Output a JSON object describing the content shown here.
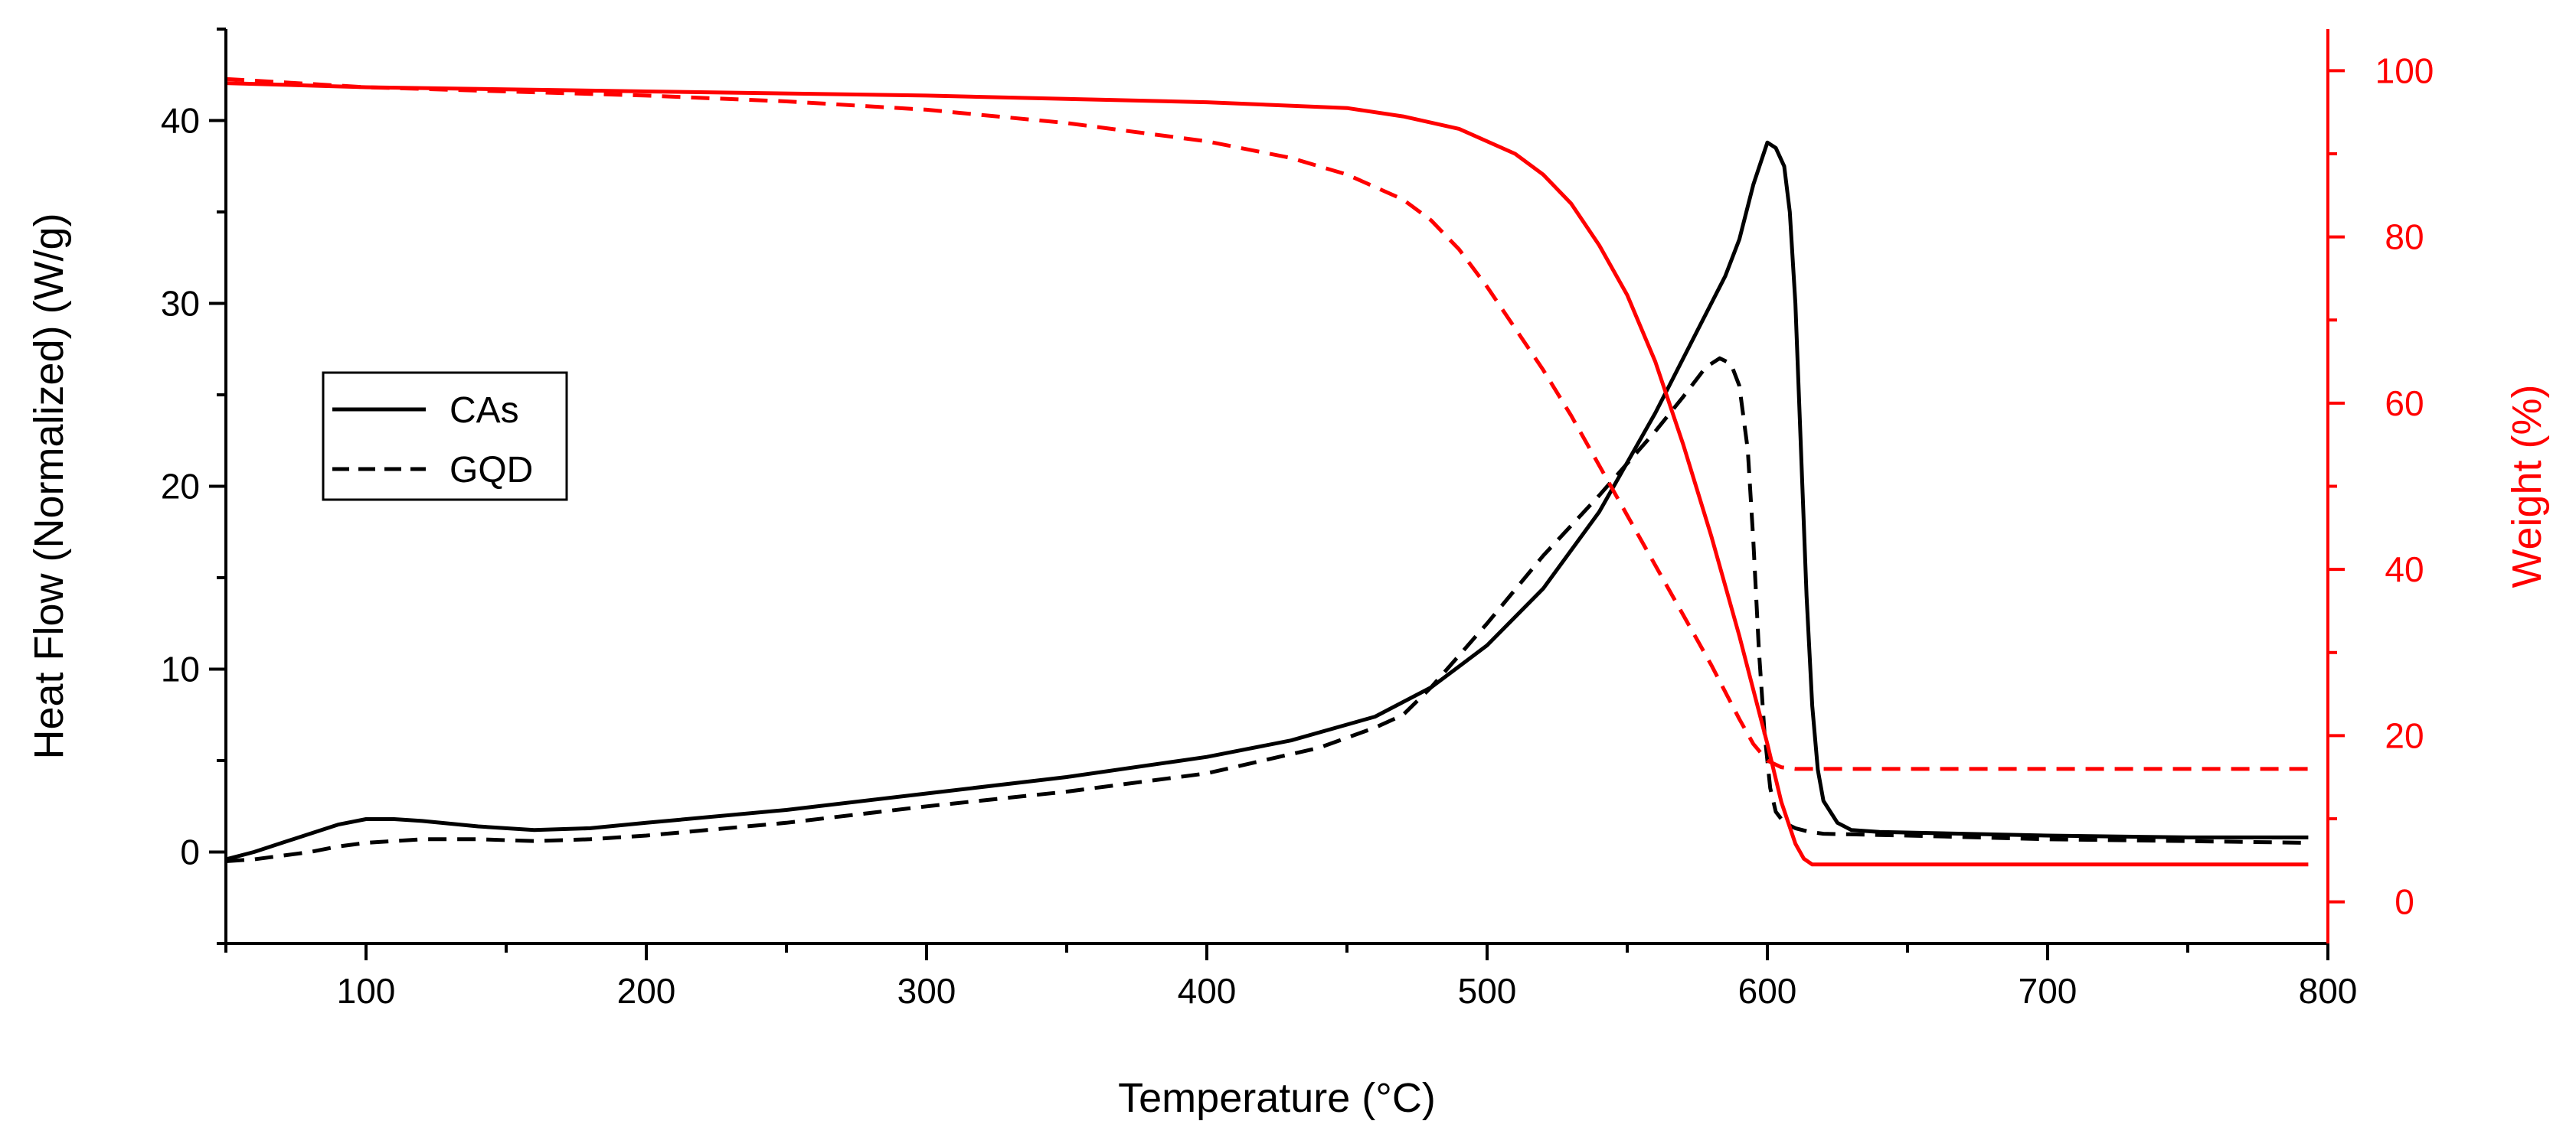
{
  "chart_data": {
    "type": "line",
    "title": "",
    "xlabel": "Temperature (°C)",
    "ylabel_left": "Heat Flow (Normalized) (W/g)",
    "ylabel_right": "Weight (%)",
    "xlim": [
      50,
      800
    ],
    "ylim_left": [
      -5,
      45
    ],
    "ylim_right": [
      -5,
      105
    ],
    "x_ticks": [
      100,
      200,
      300,
      400,
      500,
      600,
      700,
      800
    ],
    "y_left_ticks": [
      0,
      10,
      20,
      30,
      40
    ],
    "y_right_ticks": [
      0,
      20,
      40,
      60,
      80,
      100
    ],
    "grid": false,
    "legend_position": "left",
    "colors": {
      "heat_flow": "#000000",
      "weight": "#ff0000",
      "axis_right": "#ff0000"
    },
    "legend": [
      {
        "name": "CAs",
        "style": "solid"
      },
      {
        "name": "GQD",
        "style": "dashed"
      }
    ],
    "series": [
      {
        "name": "CAs heat flow",
        "axis": "left",
        "color": "#000000",
        "dash": "solid",
        "x": [
          50,
          60,
          70,
          80,
          90,
          100,
          110,
          120,
          140,
          160,
          180,
          200,
          250,
          300,
          350,
          400,
          430,
          460,
          480,
          500,
          520,
          540,
          560,
          575,
          585,
          590,
          595,
          600,
          603,
          606,
          608,
          610,
          612,
          614,
          616,
          618,
          620,
          625,
          630,
          640,
          700,
          750,
          793
        ],
        "y": [
          -0.4,
          0.0,
          0.5,
          1.0,
          1.5,
          1.8,
          1.8,
          1.7,
          1.4,
          1.2,
          1.3,
          1.6,
          2.3,
          3.2,
          4.1,
          5.2,
          6.1,
          7.4,
          9.0,
          11.3,
          14.4,
          18.6,
          24.0,
          28.5,
          31.5,
          33.5,
          36.5,
          38.8,
          38.5,
          37.5,
          35.0,
          30.0,
          22.0,
          14.0,
          8.0,
          4.5,
          2.8,
          1.6,
          1.2,
          1.1,
          0.9,
          0.8,
          0.8
        ]
      },
      {
        "name": "GQD heat flow",
        "axis": "left",
        "color": "#000000",
        "dash": "dashed",
        "x": [
          50,
          60,
          70,
          80,
          90,
          100,
          110,
          120,
          140,
          160,
          180,
          200,
          250,
          300,
          350,
          400,
          440,
          460,
          470,
          480,
          500,
          520,
          540,
          560,
          570,
          578,
          583,
          587,
          590,
          593,
          595,
          597,
          599,
          601,
          603,
          606,
          610,
          615,
          620,
          650,
          700,
          750,
          793
        ],
        "y": [
          -0.5,
          -0.4,
          -0.2,
          0.0,
          0.3,
          0.5,
          0.6,
          0.7,
          0.7,
          0.6,
          0.7,
          0.9,
          1.6,
          2.5,
          3.3,
          4.3,
          5.7,
          6.8,
          7.5,
          9.0,
          12.5,
          16.2,
          19.5,
          23.0,
          24.9,
          26.5,
          27.0,
          26.7,
          25.5,
          22.0,
          17.0,
          11.0,
          6.5,
          3.5,
          2.2,
          1.6,
          1.3,
          1.1,
          1.0,
          0.9,
          0.7,
          0.6,
          0.5
        ]
      },
      {
        "name": "CAs weight",
        "axis": "right",
        "color": "#ff0000",
        "dash": "solid",
        "x": [
          50,
          100,
          200,
          300,
          400,
          450,
          470,
          490,
          510,
          520,
          530,
          540,
          550,
          560,
          570,
          580,
          590,
          600,
          605,
          610,
          613,
          616,
          620,
          650,
          700,
          793
        ],
        "y": [
          98.5,
          98.0,
          97.5,
          97.0,
          96.2,
          95.5,
          94.5,
          93.0,
          90.0,
          87.5,
          84.0,
          79.0,
          73.0,
          65.0,
          55.0,
          44.0,
          32.0,
          19.0,
          12.0,
          7.0,
          5.2,
          4.5,
          4.5,
          4.5,
          4.5,
          4.5
        ]
      },
      {
        "name": "GQD weight",
        "axis": "right",
        "color": "#ff0000",
        "dash": "dashed",
        "x": [
          50,
          100,
          150,
          200,
          250,
          300,
          350,
          400,
          430,
          450,
          470,
          480,
          490,
          500,
          510,
          520,
          530,
          540,
          550,
          560,
          570,
          580,
          590,
          595,
          600,
          605,
          610,
          620,
          700,
          793
        ],
        "y": [
          99.0,
          98.0,
          97.5,
          97.0,
          96.3,
          95.3,
          93.7,
          91.5,
          89.5,
          87.5,
          84.5,
          82.0,
          78.5,
          74.0,
          69.0,
          64.0,
          58.5,
          52.5,
          46.5,
          40.5,
          34.5,
          28.5,
          22.0,
          19.0,
          17.0,
          16.2,
          16.0,
          16.0,
          16.0,
          16.0
        ]
      }
    ]
  }
}
